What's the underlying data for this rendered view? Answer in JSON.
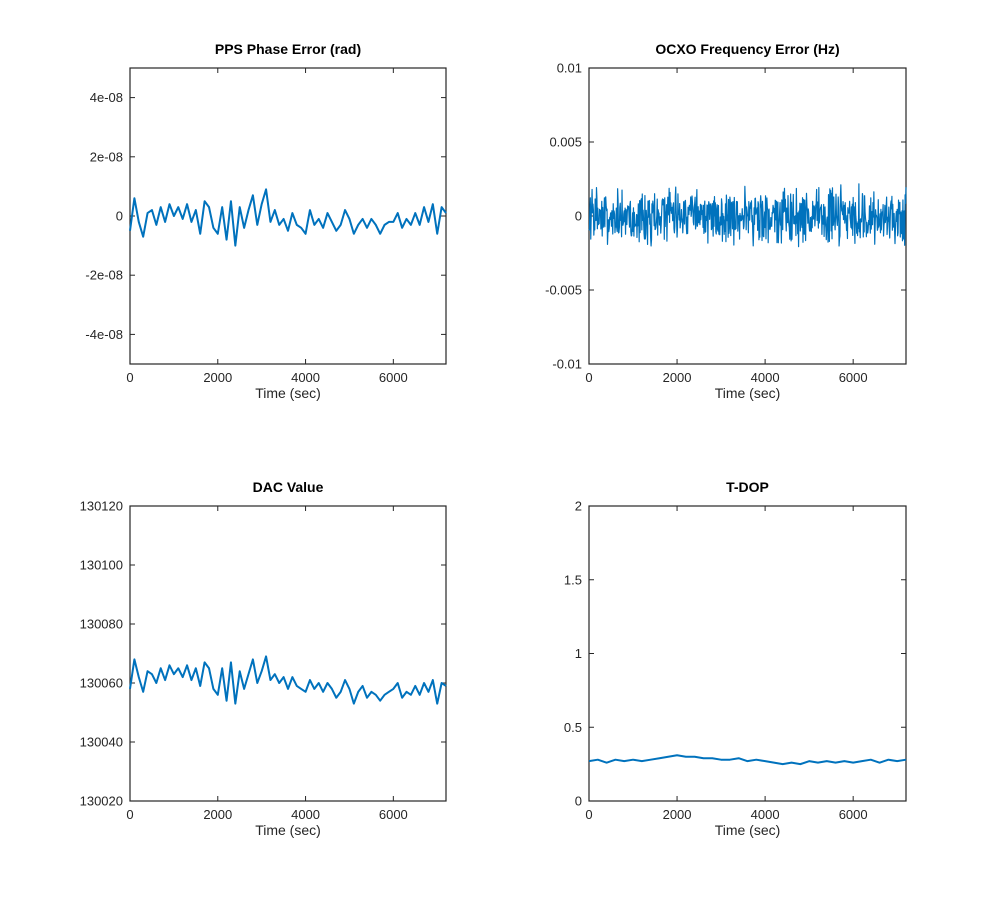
{
  "figure": {
    "colors": {
      "line": "#0072bd",
      "axis": "#262626",
      "background": "#ffffff"
    }
  },
  "chart_data": [
    {
      "id": "pps",
      "type": "line",
      "title": "PPS Phase Error (rad)",
      "xlabel": "Time (sec)",
      "ylabel": "",
      "xlim": [
        0,
        7200
      ],
      "ylim": [
        -5e-08,
        5e-08
      ],
      "xticks": [
        0,
        2000,
        4000,
        6000
      ],
      "xtick_labels": [
        "0",
        "2000",
        "4000",
        "6000"
      ],
      "yticks": [
        -4e-08,
        -2e-08,
        0,
        2e-08,
        4e-08
      ],
      "ytick_labels": [
        "-4e-08",
        "-2e-08",
        "0",
        "2e-08",
        "4e-08"
      ],
      "grid": false,
      "series": [
        {
          "x": [
            0,
            100,
            200,
            300,
            400,
            500,
            600,
            700,
            800,
            900,
            1000,
            1100,
            1200,
            1300,
            1400,
            1500,
            1600,
            1700,
            1800,
            1900,
            2000,
            2100,
            2200,
            2300,
            2400,
            2500,
            2600,
            2700,
            2800,
            2900,
            3000,
            3100,
            3200,
            3300,
            3400,
            3500,
            3600,
            3700,
            3800,
            3900,
            4000,
            4100,
            4200,
            4300,
            4400,
            4500,
            4600,
            4700,
            4800,
            4900,
            5000,
            5100,
            5200,
            5300,
            5400,
            5500,
            5600,
            5700,
            5800,
            5900,
            6000,
            6100,
            6200,
            6300,
            6400,
            6500,
            6600,
            6700,
            6800,
            6900,
            7000,
            7100,
            7200
          ],
          "y": [
            -5e-09,
            6e-09,
            -2e-09,
            -7e-09,
            1e-09,
            2e-09,
            -3e-09,
            3e-09,
            -2e-09,
            4e-09,
            0,
            3e-09,
            -1e-09,
            4e-09,
            -2e-09,
            2e-09,
            -6e-09,
            5e-09,
            3e-09,
            -4e-09,
            -6e-09,
            3e-09,
            -8e-09,
            5e-09,
            -1e-08,
            3e-09,
            -4e-09,
            2e-09,
            7e-09,
            -3e-09,
            4e-09,
            9e-09,
            -2e-09,
            2e-09,
            -3e-09,
            -1e-09,
            -5e-09,
            1e-09,
            -3e-09,
            -4e-09,
            -6e-09,
            2e-09,
            -3e-09,
            -1e-09,
            -4e-09,
            1e-09,
            -2e-09,
            -5e-09,
            -3e-09,
            2e-09,
            -1e-09,
            -6e-09,
            -3e-09,
            -1e-09,
            -4e-09,
            -1e-09,
            -3e-09,
            -6e-09,
            -3e-09,
            -2e-09,
            -2e-09,
            1e-09,
            -4e-09,
            -1e-09,
            -3e-09,
            1e-09,
            -3e-09,
            3e-09,
            -2e-09,
            4e-09,
            -6e-09,
            3e-09,
            1e-09
          ]
        }
      ]
    },
    {
      "id": "ocxo",
      "type": "line",
      "title": "OCXO Frequency Error (Hz)",
      "xlabel": "Time (sec)",
      "ylabel": "",
      "xlim": [
        0,
        7200
      ],
      "ylim": [
        -0.01,
        0.01
      ],
      "xticks": [
        0,
        2000,
        4000,
        6000
      ],
      "xtick_labels": [
        "0",
        "2000",
        "4000",
        "6000"
      ],
      "yticks": [
        -0.01,
        -0.005,
        0,
        0.005,
        0.01
      ],
      "ytick_labels": [
        "-0.01",
        "-0.005",
        "0",
        "0.005",
        "0.01"
      ],
      "grid": false,
      "noise": {
        "n": 720,
        "center": 0,
        "amplitude": 0.0022
      },
      "series": [
        {
          "x": [],
          "y": []
        }
      ]
    },
    {
      "id": "dac",
      "type": "line",
      "title": "DAC Value",
      "xlabel": "Time (sec)",
      "ylabel": "",
      "xlim": [
        0,
        7200
      ],
      "ylim": [
        130020,
        130120
      ],
      "xticks": [
        0,
        2000,
        4000,
        6000
      ],
      "xtick_labels": [
        "0",
        "2000",
        "4000",
        "6000"
      ],
      "yticks": [
        130020,
        130040,
        130060,
        130080,
        130100,
        130120
      ],
      "ytick_labels": [
        "130020",
        "130040",
        "130060",
        "130080",
        "130100",
        "130120"
      ],
      "grid": false,
      "series": [
        {
          "x": [
            0,
            100,
            200,
            300,
            400,
            500,
            600,
            700,
            800,
            900,
            1000,
            1100,
            1200,
            1300,
            1400,
            1500,
            1600,
            1700,
            1800,
            1900,
            2000,
            2100,
            2200,
            2300,
            2400,
            2500,
            2600,
            2700,
            2800,
            2900,
            3000,
            3100,
            3200,
            3300,
            3400,
            3500,
            3600,
            3700,
            3800,
            3900,
            4000,
            4100,
            4200,
            4300,
            4400,
            4500,
            4600,
            4700,
            4800,
            4900,
            5000,
            5100,
            5200,
            5300,
            5400,
            5500,
            5600,
            5700,
            5800,
            5900,
            6000,
            6100,
            6200,
            6300,
            6400,
            6500,
            6600,
            6700,
            6800,
            6900,
            7000,
            7100,
            7200
          ],
          "y": [
            130058,
            130068,
            130062,
            130057,
            130064,
            130063,
            130060,
            130065,
            130061,
            130066,
            130063,
            130065,
            130062,
            130066,
            130061,
            130065,
            130059,
            130067,
            130065,
            130058,
            130056,
            130065,
            130054,
            130067,
            130053,
            130064,
            130058,
            130063,
            130068,
            130060,
            130064,
            130069,
            130061,
            130063,
            130060,
            130062,
            130058,
            130062,
            130059,
            130058,
            130057,
            130061,
            130058,
            130060,
            130057,
            130060,
            130058,
            130055,
            130057,
            130061,
            130058,
            130053,
            130057,
            130059,
            130055,
            130057,
            130056,
            130054,
            130056,
            130057,
            130058,
            130060,
            130055,
            130057,
            130056,
            130059,
            130056,
            130060,
            130057,
            130061,
            130053,
            130060,
            130059
          ]
        }
      ]
    },
    {
      "id": "tdop",
      "type": "line",
      "title": "T-DOP",
      "xlabel": "Time (sec)",
      "ylabel": "",
      "xlim": [
        0,
        7200
      ],
      "ylim": [
        0,
        2
      ],
      "xticks": [
        0,
        2000,
        4000,
        6000
      ],
      "xtick_labels": [
        "0",
        "2000",
        "4000",
        "6000"
      ],
      "yticks": [
        0,
        0.5,
        1,
        1.5,
        2
      ],
      "ytick_labels": [
        "0",
        "0.5",
        "1",
        "1.5",
        "2"
      ],
      "grid": false,
      "series": [
        {
          "x": [
            0,
            200,
            400,
            600,
            800,
            1000,
            1200,
            1400,
            1600,
            1800,
            2000,
            2200,
            2400,
            2600,
            2800,
            3000,
            3200,
            3400,
            3600,
            3800,
            4000,
            4200,
            4400,
            4600,
            4800,
            5000,
            5200,
            5400,
            5600,
            5800,
            6000,
            6200,
            6400,
            6600,
            6800,
            7000,
            7200
          ],
          "y": [
            0.27,
            0.28,
            0.26,
            0.28,
            0.27,
            0.28,
            0.27,
            0.28,
            0.29,
            0.3,
            0.31,
            0.3,
            0.3,
            0.29,
            0.29,
            0.28,
            0.28,
            0.29,
            0.27,
            0.28,
            0.27,
            0.26,
            0.25,
            0.26,
            0.25,
            0.27,
            0.26,
            0.27,
            0.26,
            0.27,
            0.26,
            0.27,
            0.28,
            0.26,
            0.28,
            0.27,
            0.28
          ]
        }
      ]
    }
  ]
}
